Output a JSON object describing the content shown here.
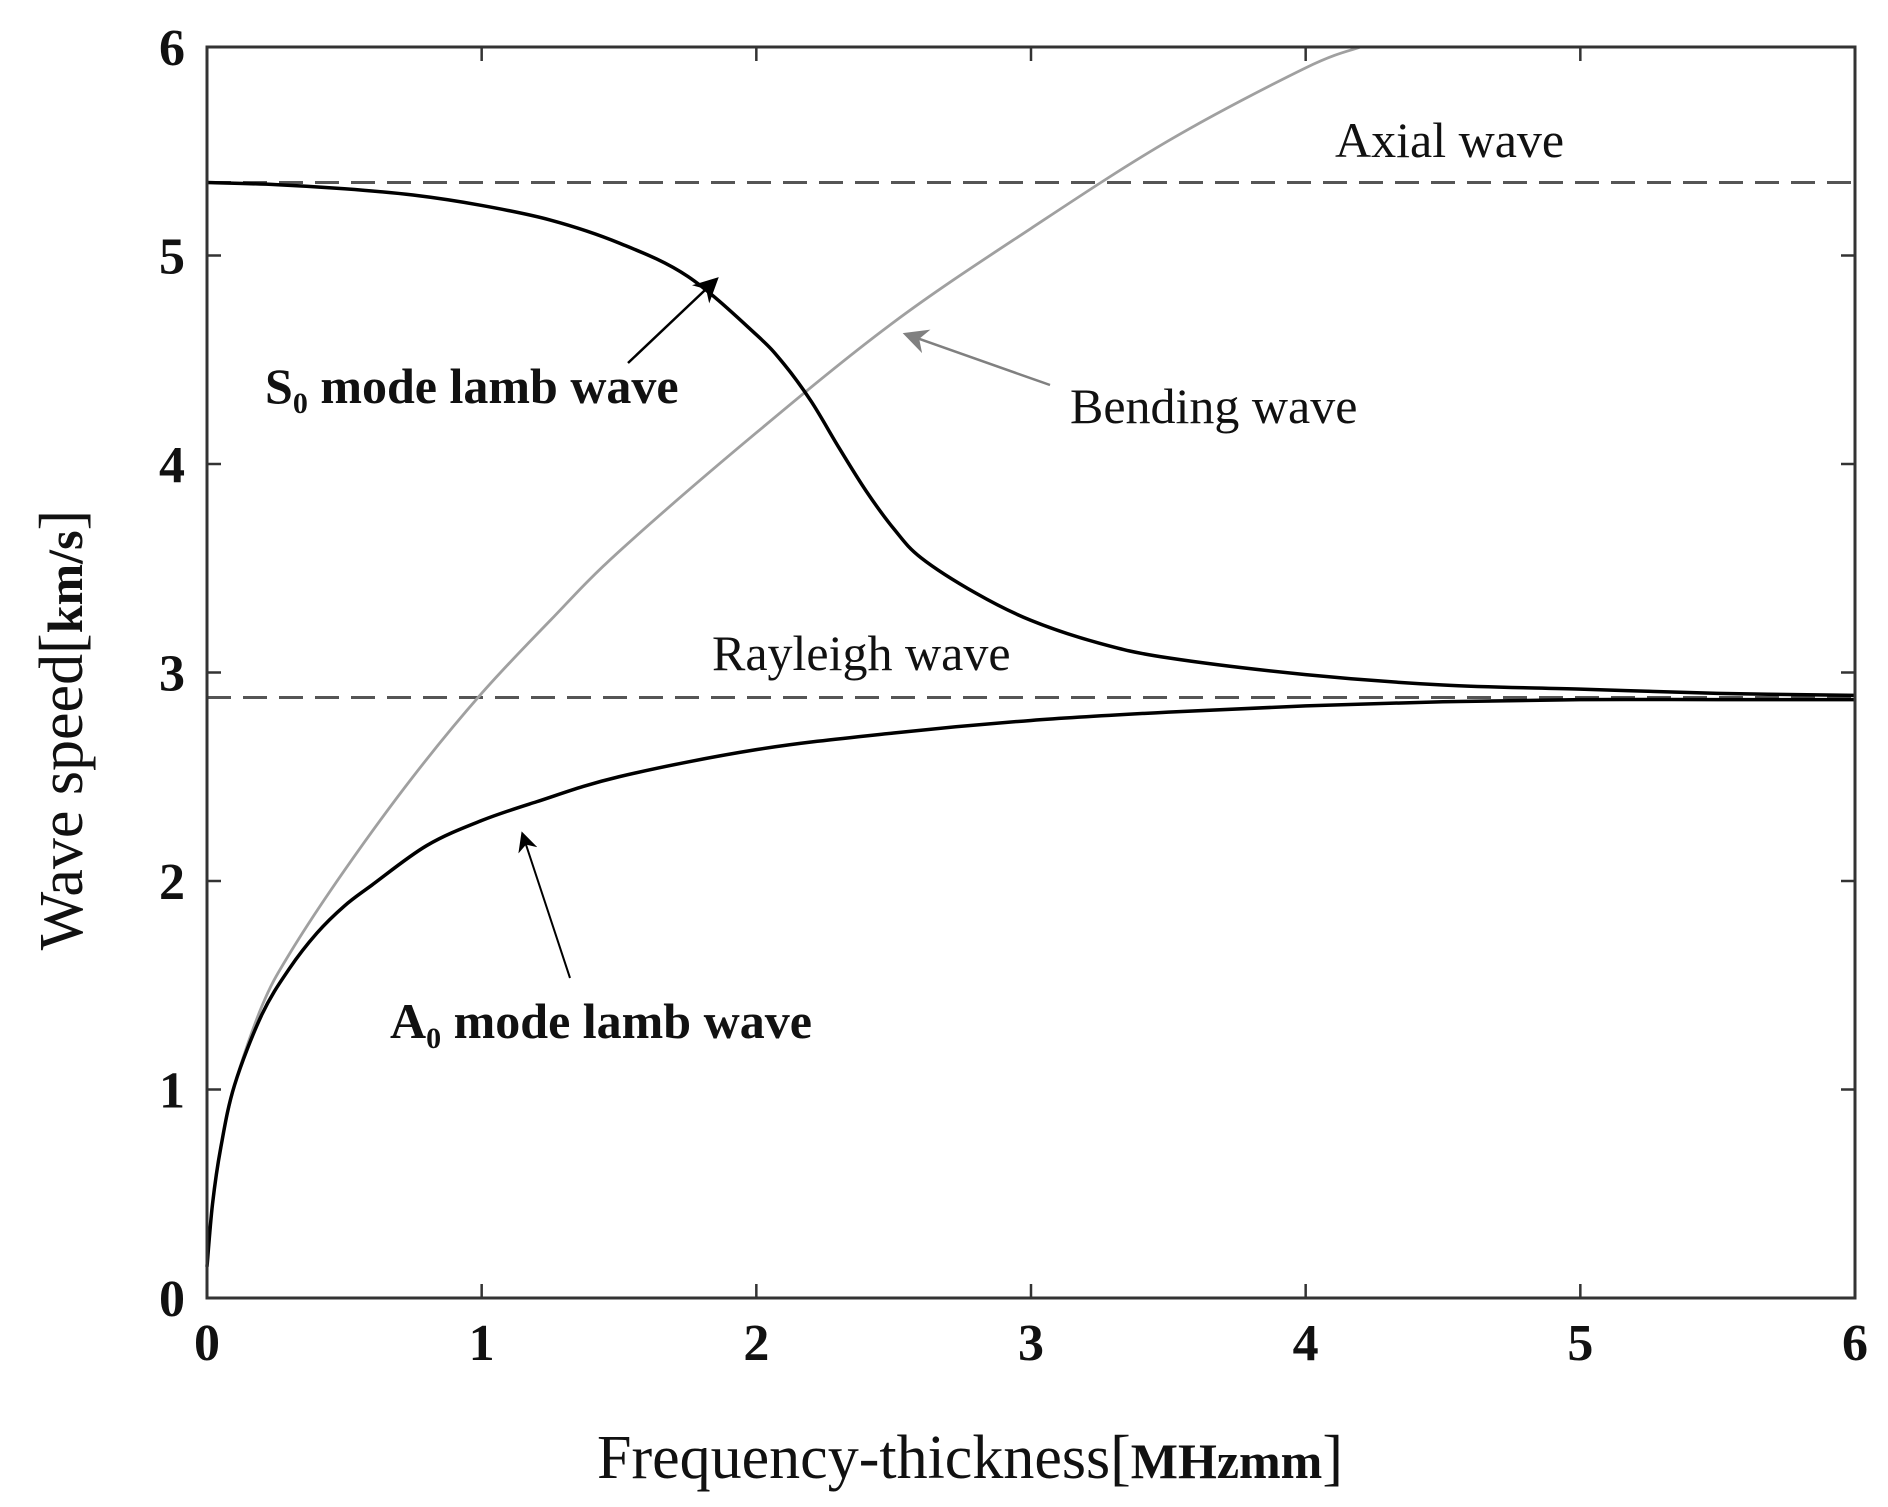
{
  "chart_data": {
    "type": "line",
    "title": "",
    "xlabel": {
      "main": "Frequency-thickness",
      "unit": "MHzmm"
    },
    "ylabel": {
      "main": "Wave speed",
      "unit": "km/s"
    },
    "xlim": [
      0,
      6
    ],
    "ylim": [
      0,
      6
    ],
    "xticks": [
      "0",
      "1",
      "2",
      "3",
      "4",
      "5",
      "6"
    ],
    "yticks": [
      "0",
      "1",
      "2",
      "3",
      "4",
      "5",
      "6"
    ],
    "grid": false,
    "series": [
      {
        "name": "S0 mode lamb wave",
        "color": "#000000",
        "style": "solid",
        "x": [
          0,
          0.25,
          0.5,
          0.75,
          1.0,
          1.25,
          1.5,
          1.75,
          2.0,
          2.1,
          2.2,
          2.3,
          2.4,
          2.5,
          2.6,
          2.8,
          3.0,
          3.25,
          3.5,
          4.0,
          4.5,
          5.0,
          5.5,
          6.0
        ],
        "y": [
          5.35,
          5.34,
          5.32,
          5.29,
          5.24,
          5.17,
          5.06,
          4.9,
          4.62,
          4.48,
          4.3,
          4.08,
          3.87,
          3.69,
          3.55,
          3.38,
          3.25,
          3.14,
          3.07,
          2.99,
          2.94,
          2.92,
          2.9,
          2.89
        ]
      },
      {
        "name": "A0 mode lamb wave",
        "color": "#000000",
        "style": "solid",
        "x": [
          0,
          0.02,
          0.05,
          0.1,
          0.2,
          0.3,
          0.4,
          0.5,
          0.6,
          0.8,
          1.0,
          1.2,
          1.5,
          2.0,
          2.5,
          3.0,
          3.5,
          4.0,
          4.5,
          5.0,
          5.5,
          6.0
        ],
        "y": [
          0.15,
          0.45,
          0.72,
          1.02,
          1.36,
          1.58,
          1.75,
          1.88,
          1.98,
          2.17,
          2.29,
          2.38,
          2.5,
          2.63,
          2.71,
          2.77,
          2.81,
          2.84,
          2.86,
          2.87,
          2.87,
          2.87
        ]
      },
      {
        "name": "Bending wave",
        "color": "#a0a0a0",
        "style": "solid",
        "x": [
          0,
          0.02,
          0.05,
          0.1,
          0.2,
          0.3,
          0.5,
          0.75,
          1.0,
          1.25,
          1.5,
          2.0,
          2.5,
          3.0,
          3.5,
          4.0,
          4.2
        ],
        "y": [
          0.15,
          0.45,
          0.72,
          1.02,
          1.4,
          1.65,
          2.05,
          2.5,
          2.9,
          3.25,
          3.58,
          4.15,
          4.68,
          5.13,
          5.55,
          5.9,
          6.0
        ]
      },
      {
        "name": "Axial wave",
        "color": "#555555",
        "style": "dashed",
        "x": [
          0,
          6
        ],
        "y": [
          5.35,
          5.35
        ]
      },
      {
        "name": "Rayleigh wave",
        "color": "#555555",
        "style": "dashed",
        "x": [
          0,
          6
        ],
        "y": [
          2.88,
          2.88
        ]
      }
    ],
    "annotations": [
      {
        "id": "s0",
        "label": "S",
        "subscript": "0",
        "text": " mode lamb wave",
        "bold": true,
        "arrow_to": [
          1.85,
          4.88
        ],
        "arrow_color": "#000000"
      },
      {
        "id": "a0",
        "label": "A",
        "subscript": "0",
        "text": " mode lamb wave",
        "bold": true,
        "arrow_to": [
          1.15,
          2.22
        ],
        "arrow_color": "#000000"
      },
      {
        "id": "bending",
        "text": "Bending wave",
        "bold": false,
        "arrow_to": [
          2.55,
          4.62
        ],
        "arrow_color": "#808080"
      },
      {
        "id": "axial",
        "text": "Axial wave",
        "bold": false
      },
      {
        "id": "rayleigh",
        "text": "Rayleigh wave",
        "bold": false
      }
    ]
  }
}
